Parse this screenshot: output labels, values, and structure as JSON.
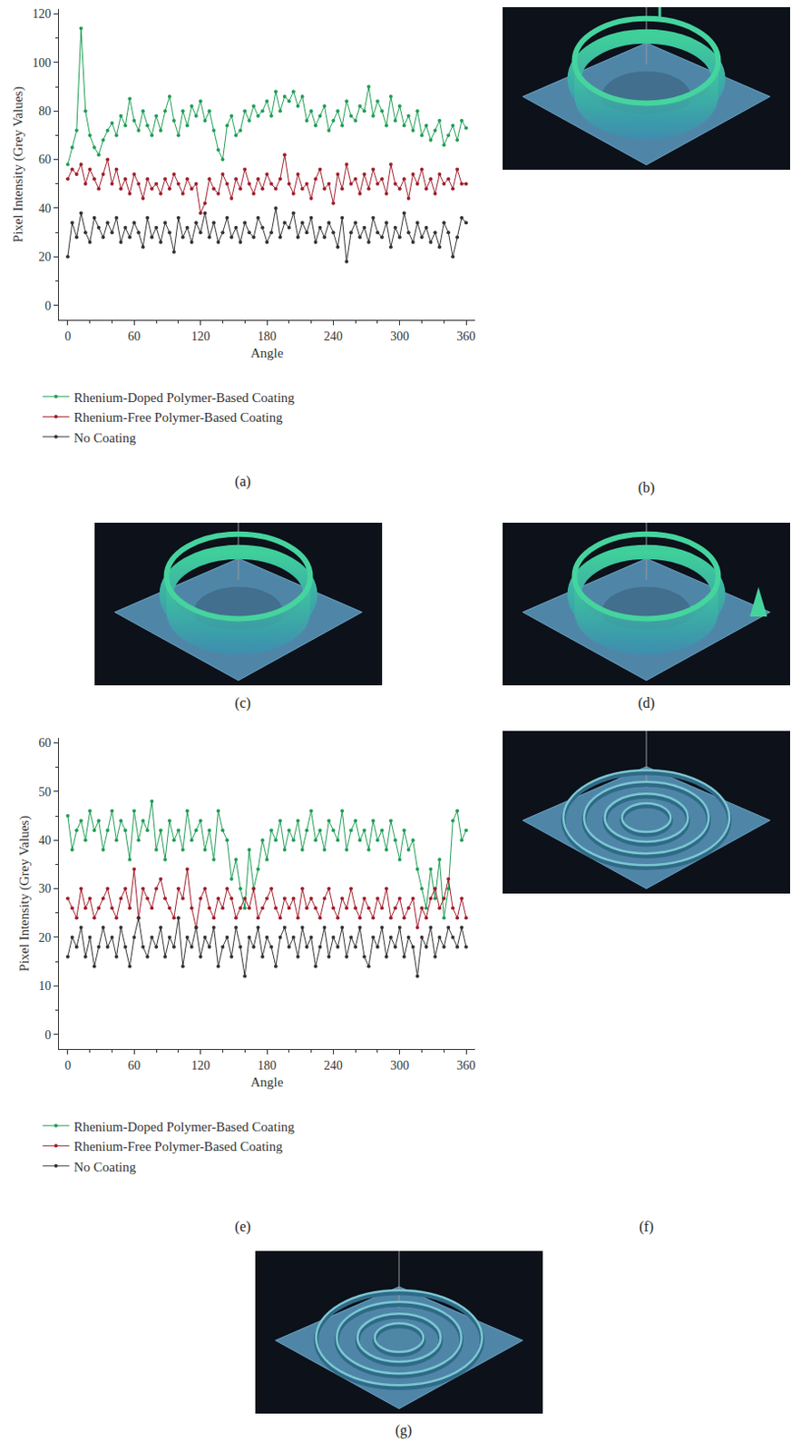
{
  "chart_data": [
    {
      "type": "line",
      "panel": "(a)",
      "x_label": "Angle",
      "y_label": "Pixel Intensity (Grey Values)",
      "xlim": [
        -8,
        368
      ],
      "xticks": [
        0,
        60,
        120,
        180,
        240,
        300,
        360
      ],
      "ylim": [
        -6,
        122
      ],
      "yticks": [
        0,
        20,
        40,
        60,
        80,
        100,
        120
      ],
      "grid": false,
      "legend": "bottom",
      "marker": "circle",
      "line_style": "solid",
      "x": [
        0,
        4,
        8,
        12,
        16,
        20,
        24,
        28,
        32,
        36,
        40,
        44,
        48,
        52,
        56,
        60,
        64,
        68,
        72,
        76,
        80,
        84,
        88,
        92,
        96,
        100,
        104,
        108,
        112,
        116,
        120,
        124,
        128,
        132,
        136,
        140,
        144,
        148,
        152,
        156,
        160,
        164,
        168,
        172,
        176,
        180,
        184,
        188,
        192,
        196,
        200,
        204,
        208,
        212,
        216,
        220,
        224,
        228,
        232,
        236,
        240,
        244,
        248,
        252,
        256,
        260,
        264,
        268,
        272,
        276,
        280,
        284,
        288,
        292,
        296,
        300,
        304,
        308,
        312,
        316,
        320,
        324,
        328,
        332,
        336,
        340,
        344,
        348,
        352,
        356,
        360
      ],
      "series": [
        {
          "name": "Rhenium-Doped Polymer-Based Coating",
          "color": "#1f9e55",
          "values": [
            58,
            65,
            72,
            114,
            80,
            70,
            65,
            62,
            68,
            72,
            75,
            70,
            78,
            74,
            85,
            76,
            72,
            80,
            74,
            70,
            78,
            72,
            80,
            86,
            76,
            70,
            80,
            74,
            82,
            78,
            84,
            76,
            80,
            72,
            64,
            60,
            74,
            78,
            70,
            72,
            80,
            76,
            82,
            78,
            80,
            84,
            78,
            88,
            80,
            86,
            84,
            88,
            82,
            86,
            76,
            80,
            74,
            78,
            82,
            72,
            76,
            80,
            74,
            84,
            78,
            76,
            82,
            80,
            90,
            78,
            84,
            80,
            74,
            86,
            76,
            82,
            74,
            78,
            72,
            80,
            70,
            74,
            68,
            72,
            76,
            66,
            70,
            74,
            68,
            76,
            73
          ]
        },
        {
          "name": "Rhenium-Free Polymer-Based Coating",
          "color": "#a11d2b",
          "values": [
            52,
            56,
            54,
            58,
            50,
            56,
            52,
            48,
            54,
            60,
            50,
            56,
            48,
            52,
            46,
            54,
            50,
            44,
            52,
            48,
            50,
            46,
            52,
            48,
            54,
            50,
            46,
            52,
            48,
            50,
            38,
            42,
            52,
            48,
            46,
            54,
            50,
            44,
            52,
            48,
            56,
            50,
            46,
            52,
            48,
            54,
            50,
            48,
            52,
            62,
            50,
            46,
            54,
            48,
            50,
            44,
            52,
            56,
            48,
            50,
            42,
            54,
            48,
            58,
            50,
            52,
            46,
            54,
            48,
            56,
            50,
            52,
            46,
            58,
            50,
            48,
            52,
            44,
            54,
            50,
            56,
            48,
            52,
            46,
            54,
            50,
            52,
            48,
            56,
            50,
            50
          ]
        },
        {
          "name": "No Coating",
          "color": "#333333",
          "values": [
            20,
            34,
            28,
            38,
            30,
            26,
            36,
            32,
            28,
            34,
            30,
            36,
            26,
            32,
            28,
            34,
            30,
            24,
            36,
            28,
            32,
            26,
            34,
            30,
            22,
            36,
            28,
            32,
            26,
            34,
            30,
            38,
            28,
            34,
            26,
            30,
            36,
            28,
            32,
            26,
            34,
            30,
            28,
            36,
            32,
            26,
            30,
            40,
            28,
            34,
            32,
            38,
            28,
            34,
            30,
            36,
            26,
            32,
            28,
            34,
            30,
            24,
            36,
            18,
            30,
            34,
            28,
            32,
            26,
            36,
            30,
            28,
            34,
            24,
            32,
            28,
            38,
            30,
            26,
            34,
            28,
            32,
            26,
            30,
            24,
            34,
            30,
            20,
            28,
            36,
            34
          ]
        }
      ]
    },
    {
      "type": "line",
      "panel": "(e)",
      "x_label": "Angle",
      "y_label": "Pixel Intensity (Grey Values)",
      "xlim": [
        -8,
        368
      ],
      "xticks": [
        0,
        60,
        120,
        180,
        240,
        300,
        360
      ],
      "ylim": [
        -3,
        61
      ],
      "yticks": [
        0,
        10,
        20,
        30,
        40,
        50,
        60
      ],
      "grid": false,
      "legend": "bottom",
      "marker": "circle",
      "line_style": "solid",
      "x": [
        0,
        4,
        8,
        12,
        16,
        20,
        24,
        28,
        32,
        36,
        40,
        44,
        48,
        52,
        56,
        60,
        64,
        68,
        72,
        76,
        80,
        84,
        88,
        92,
        96,
        100,
        104,
        108,
        112,
        116,
        120,
        124,
        128,
        132,
        136,
        140,
        144,
        148,
        152,
        156,
        160,
        164,
        168,
        172,
        176,
        180,
        184,
        188,
        192,
        196,
        200,
        204,
        208,
        212,
        216,
        220,
        224,
        228,
        232,
        236,
        240,
        244,
        248,
        252,
        256,
        260,
        264,
        268,
        272,
        276,
        280,
        284,
        288,
        292,
        296,
        300,
        304,
        308,
        312,
        316,
        320,
        324,
        328,
        332,
        336,
        340,
        344,
        348,
        352,
        356,
        360
      ],
      "series": [
        {
          "name": "Rhenium-Doped Polymer-Based Coating",
          "color": "#1f9e55",
          "values": [
            45,
            38,
            42,
            44,
            40,
            46,
            42,
            44,
            38,
            42,
            46,
            40,
            44,
            42,
            36,
            46,
            40,
            44,
            42,
            48,
            38,
            42,
            36,
            44,
            40,
            42,
            38,
            46,
            40,
            42,
            44,
            38,
            42,
            36,
            46,
            42,
            40,
            32,
            36,
            30,
            26,
            38,
            30,
            34,
            40,
            36,
            42,
            40,
            44,
            38,
            42,
            40,
            44,
            38,
            42,
            46,
            40,
            42,
            38,
            44,
            42,
            40,
            46,
            38,
            42,
            44,
            40,
            42,
            38,
            44,
            40,
            42,
            38,
            44,
            40,
            36,
            42,
            38,
            40,
            34,
            30,
            26,
            34,
            28,
            36,
            24,
            30,
            44,
            46,
            40,
            42
          ]
        },
        {
          "name": "Rhenium-Free Polymer-Based Coating",
          "color": "#a11d2b",
          "values": [
            28,
            26,
            24,
            30,
            26,
            28,
            24,
            26,
            28,
            30,
            26,
            24,
            28,
            30,
            26,
            34,
            24,
            30,
            28,
            26,
            30,
            32,
            28,
            26,
            24,
            30,
            28,
            34,
            26,
            22,
            28,
            30,
            26,
            24,
            28,
            26,
            30,
            28,
            24,
            26,
            28,
            26,
            30,
            24,
            26,
            28,
            30,
            26,
            24,
            28,
            26,
            28,
            24,
            30,
            26,
            28,
            26,
            24,
            28,
            30,
            26,
            24,
            28,
            26,
            30,
            26,
            24,
            28,
            26,
            24,
            28,
            26,
            30,
            24,
            26,
            28,
            24,
            26,
            28,
            22,
            26,
            24,
            28,
            30,
            26,
            28,
            32,
            26,
            24,
            28,
            24
          ]
        },
        {
          "name": "No Coating",
          "color": "#333333",
          "values": [
            16,
            20,
            18,
            22,
            16,
            20,
            14,
            18,
            22,
            18,
            20,
            16,
            22,
            18,
            14,
            20,
            24,
            18,
            16,
            20,
            18,
            22,
            16,
            20,
            18,
            24,
            14,
            20,
            18,
            22,
            16,
            20,
            18,
            22,
            14,
            18,
            20,
            16,
            22,
            18,
            12,
            20,
            18,
            22,
            16,
            20,
            18,
            14,
            20,
            22,
            18,
            20,
            16,
            22,
            18,
            20,
            14,
            18,
            22,
            16,
            20,
            18,
            22,
            16,
            20,
            18,
            22,
            16,
            14,
            20,
            18,
            22,
            16,
            20,
            18,
            22,
            16,
            20,
            18,
            12,
            20,
            18,
            22,
            16,
            20,
            18,
            22,
            20,
            18,
            22,
            18
          ]
        }
      ]
    }
  ],
  "images": [
    {
      "panel": "(b)"
    },
    {
      "panel": "(c)"
    },
    {
      "panel": "(d)"
    },
    {
      "panel": "(f)"
    },
    {
      "panel": "(g)"
    }
  ]
}
